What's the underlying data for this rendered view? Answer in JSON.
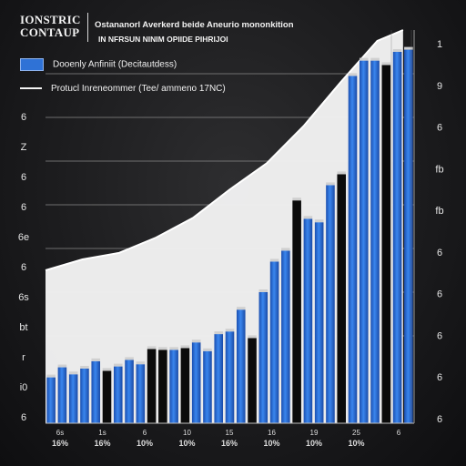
{
  "header": {
    "brand": [
      "IONSTRIC",
      "CONTAUP"
    ],
    "title": "Ostananorl Averkerd beide Aneurio mononkition",
    "subtitle": "IN NFRSUN NINIM OPIIDE PIHRIJOI"
  },
  "legend": {
    "bars_label": "Dooenly Anfiniit (Decitautdess)",
    "line_label": "Protucl Inreneommer (Tee/ ammeno 17NC)"
  },
  "chart_data": {
    "type": "bar",
    "title": "Ostananorl Averkerd beide Aneurio mononkition",
    "subtitle": "IN NFRSUN NINIM OPIIDE PIHRIJOI",
    "xlabel": "",
    "ylabel": "",
    "ylim": [
      0,
      9
    ],
    "grid": true,
    "legend_position": "top-left",
    "colors": {
      "bar_blue": "#2f72d6",
      "bar_black": "#0b0b0b",
      "area_fill": "#f4f4f4",
      "cap": "#d0d0d0"
    },
    "left_tick_labels": [
      "6",
      "Z",
      "6",
      "6",
      "6e",
      "6",
      "6s",
      "bt",
      "r",
      "i0",
      "6"
    ],
    "right_tick_labels": [
      "1",
      "9",
      "6",
      "fb",
      "fb",
      "6",
      "6",
      "6",
      "6",
      "6"
    ],
    "x_tick_labels": [
      "6s",
      "1s",
      "6",
      "10",
      "15",
      "16",
      "19",
      "25",
      "6"
    ],
    "x_tick_sublabels": [
      "16%",
      "16%",
      "10%",
      "10%",
      "16%",
      "10%",
      "10%",
      "10%"
    ],
    "bars": [
      {
        "value": 1.05,
        "color": "blue"
      },
      {
        "value": 1.28,
        "color": "blue"
      },
      {
        "value": 1.12,
        "color": "blue"
      },
      {
        "value": 1.25,
        "color": "blue"
      },
      {
        "value": 1.42,
        "color": "blue"
      },
      {
        "value": 1.2,
        "color": "black"
      },
      {
        "value": 1.3,
        "color": "blue"
      },
      {
        "value": 1.45,
        "color": "blue"
      },
      {
        "value": 1.35,
        "color": "blue"
      },
      {
        "value": 1.7,
        "color": "black"
      },
      {
        "value": 1.68,
        "color": "black"
      },
      {
        "value": 1.68,
        "color": "blue"
      },
      {
        "value": 1.72,
        "color": "black"
      },
      {
        "value": 1.85,
        "color": "blue"
      },
      {
        "value": 1.65,
        "color": "blue"
      },
      {
        "value": 2.04,
        "color": "blue"
      },
      {
        "value": 2.1,
        "color": "blue"
      },
      {
        "value": 2.6,
        "color": "blue"
      },
      {
        "value": 1.95,
        "color": "black"
      },
      {
        "value": 3.0,
        "color": "blue"
      },
      {
        "value": 3.7,
        "color": "blue"
      },
      {
        "value": 3.95,
        "color": "blue"
      },
      {
        "value": 5.1,
        "color": "black"
      },
      {
        "value": 4.68,
        "color": "blue"
      },
      {
        "value": 4.6,
        "color": "blue"
      },
      {
        "value": 5.45,
        "color": "blue"
      },
      {
        "value": 5.7,
        "color": "black"
      },
      {
        "value": 7.95,
        "color": "blue"
      },
      {
        "value": 8.3,
        "color": "blue"
      },
      {
        "value": 8.3,
        "color": "blue"
      },
      {
        "value": 8.2,
        "color": "black"
      },
      {
        "value": 8.5,
        "color": "blue"
      },
      {
        "value": 8.55,
        "color": "blue"
      }
    ],
    "line": [
      {
        "x": 0,
        "y": 3.5
      },
      {
        "x": 0.1,
        "y": 3.75
      },
      {
        "x": 0.2,
        "y": 3.9
      },
      {
        "x": 0.3,
        "y": 4.25
      },
      {
        "x": 0.4,
        "y": 4.7
      },
      {
        "x": 0.5,
        "y": 5.35
      },
      {
        "x": 0.6,
        "y": 5.95
      },
      {
        "x": 0.7,
        "y": 6.8
      },
      {
        "x": 0.8,
        "y": 7.8
      },
      {
        "x": 0.9,
        "y": 8.75
      },
      {
        "x": 0.97,
        "y": 9.0
      }
    ]
  }
}
